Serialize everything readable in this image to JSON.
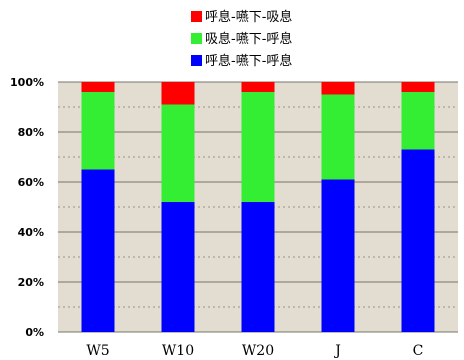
{
  "chart_data": {
    "type": "bar",
    "stacked": true,
    "percent": true,
    "categories": [
      "W5",
      "W10",
      "W20",
      "J",
      "C"
    ],
    "series": [
      {
        "name": "呼息-嚥下-呼息",
        "color": "#0000ff",
        "values": [
          65,
          52,
          52,
          61,
          73
        ]
      },
      {
        "name": "吸息-嚥下-呼息",
        "color": "#33ee33",
        "values": [
          31,
          39,
          44,
          34,
          23
        ]
      },
      {
        "name": "呼息-嚥下-吸息",
        "color": "#ff0000",
        "values": [
          4,
          9,
          4,
          5,
          4
        ]
      }
    ],
    "ylim": [
      0,
      100
    ],
    "yticks": [
      "0%",
      "20%",
      "40%",
      "60%",
      "80%",
      "100%"
    ],
    "ytick_values": [
      0,
      20,
      40,
      60,
      80,
      100
    ],
    "grid": true,
    "legend_position": "top-center",
    "legend_order": [
      2,
      1,
      0
    ],
    "plot_background": "#e2dcd1"
  }
}
